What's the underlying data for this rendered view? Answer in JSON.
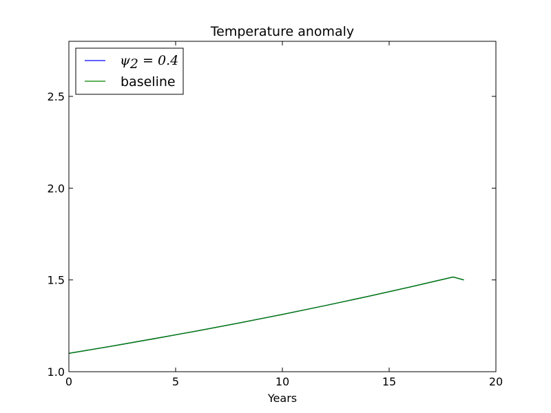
{
  "chart_data": {
    "type": "line",
    "title": "Temperature anomaly",
    "xlabel": "Years",
    "ylabel": "",
    "xlim": [
      0,
      20
    ],
    "ylim": [
      1.0,
      2.8
    ],
    "xticks": [
      0,
      5,
      10,
      15,
      20
    ],
    "xtick_labels": [
      "0",
      "5",
      "10",
      "15",
      "20"
    ],
    "yticks": [
      1.0,
      1.5,
      2.0,
      2.5
    ],
    "ytick_labels": [
      "1.0",
      "1.5",
      "2.0",
      "2.5"
    ],
    "grid": false,
    "legend_position": "top-left",
    "series": [
      {
        "name": "ψ₂ = 0.4",
        "color": "#0000ff",
        "x": [
          0,
          2,
          4,
          6,
          8,
          10,
          12,
          14,
          16,
          18,
          18.5
        ],
        "y": [
          1.1,
          1.139,
          1.18,
          1.222,
          1.266,
          1.312,
          1.36,
          1.41,
          1.462,
          1.516,
          1.5
        ]
      },
      {
        "name": "baseline",
        "color": "#008000",
        "x": [
          0,
          2,
          4,
          6,
          8,
          10,
          12,
          14,
          16,
          18,
          18.5
        ],
        "y": [
          1.1,
          1.139,
          1.18,
          1.222,
          1.266,
          1.312,
          1.36,
          1.41,
          1.462,
          1.516,
          1.5
        ]
      }
    ]
  },
  "legend": {
    "item1_psi": "ψ",
    "item1_sub": "2",
    "item1_rest": " = 0.4",
    "item2_label": "baseline"
  }
}
